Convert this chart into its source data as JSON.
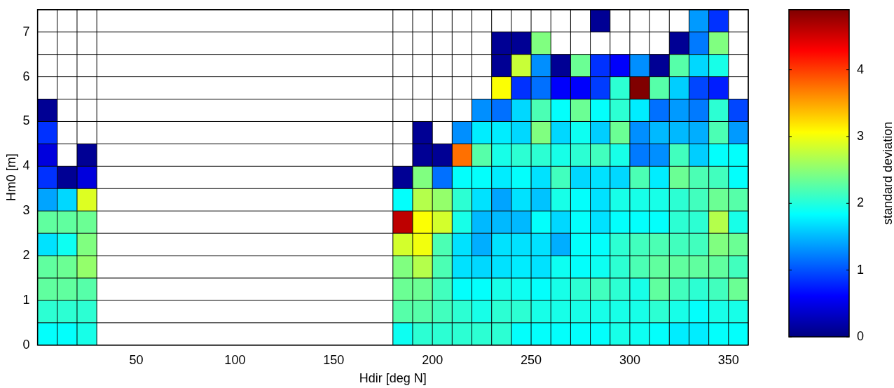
{
  "chart_data": {
    "type": "heatmap",
    "xlabel": "Hdir [deg N]",
    "ylabel": "Hm0 [m]",
    "clabel": "standard deviation",
    "grid": true,
    "xlim": [
      0,
      360
    ],
    "xticks": [
      50,
      100,
      150,
      200,
      250,
      300,
      350
    ],
    "ylim": [
      0,
      7.5
    ],
    "yticks": [
      0,
      1,
      2,
      3,
      4,
      5,
      6,
      7
    ],
    "clim": [
      0,
      4.9
    ],
    "cticks": [
      0,
      1,
      2,
      3,
      4
    ],
    "cells": [
      [
        null,
        null,
        null,
        null,
        null,
        null,
        null,
        null,
        null,
        null,
        null,
        null,
        null,
        null,
        null,
        null,
        null,
        null,
        null,
        null,
        null,
        null,
        null,
        null,
        null,
        null,
        null,
        null,
        0.1,
        null,
        null,
        null,
        null,
        1.35,
        0.85,
        null
      ],
      [
        null,
        null,
        null,
        null,
        null,
        null,
        null,
        null,
        null,
        null,
        null,
        null,
        null,
        null,
        null,
        null,
        null,
        null,
        null,
        null,
        null,
        null,
        null,
        0.1,
        0.1,
        2.45,
        null,
        null,
        null,
        null,
        null,
        null,
        0.1,
        1.2,
        2.45,
        null
      ],
      [
        null,
        null,
        null,
        null,
        null,
        null,
        null,
        null,
        null,
        null,
        null,
        null,
        null,
        null,
        null,
        null,
        null,
        null,
        null,
        null,
        null,
        null,
        null,
        0.1,
        2.8,
        1.3,
        0.1,
        2.35,
        0.85,
        0.6,
        1.3,
        0.1,
        2.25,
        1.65,
        1.95,
        null
      ],
      [
        null,
        null,
        null,
        null,
        null,
        null,
        null,
        null,
        null,
        null,
        null,
        null,
        null,
        null,
        null,
        null,
        null,
        null,
        null,
        null,
        null,
        null,
        null,
        3.05,
        0.85,
        1.15,
        0.6,
        0.6,
        0.9,
        2.05,
        4.9,
        2.25,
        1.6,
        0.95,
        0.75,
        null
      ],
      [
        0.1,
        null,
        null,
        null,
        null,
        null,
        null,
        null,
        null,
        null,
        null,
        null,
        null,
        null,
        null,
        null,
        null,
        null,
        null,
        null,
        null,
        null,
        1.3,
        1.15,
        1.65,
        2.2,
        1.85,
        2.35,
        1.85,
        2.05,
        1.75,
        1.15,
        1.35,
        1.2,
        2.05,
        0.95
      ],
      [
        0.85,
        null,
        null,
        null,
        null,
        null,
        null,
        null,
        null,
        null,
        null,
        null,
        null,
        null,
        null,
        null,
        null,
        null,
        null,
        0.1,
        null,
        1.3,
        1.75,
        1.75,
        1.65,
        2.45,
        1.65,
        1.9,
        1.6,
        2.35,
        1.3,
        1.5,
        1.5,
        1.45,
        2.2,
        1.35
      ],
      [
        0.45,
        null,
        0.1,
        null,
        null,
        null,
        null,
        null,
        null,
        null,
        null,
        null,
        null,
        null,
        null,
        null,
        null,
        null,
        null,
        0.1,
        0.1,
        3.75,
        2.25,
        1.95,
        2.05,
        2.05,
        1.95,
        2.05,
        2.15,
        1.95,
        1.2,
        1.3,
        2.15,
        1.6,
        1.85,
        1.85
      ],
      [
        0.85,
        0.1,
        0.45,
        null,
        null,
        null,
        null,
        null,
        null,
        null,
        null,
        null,
        null,
        null,
        null,
        null,
        null,
        null,
        0.1,
        2.45,
        1.15,
        1.85,
        1.85,
        1.75,
        1.85,
        1.7,
        2.15,
        1.65,
        1.7,
        1.65,
        2.2,
        1.75,
        2.35,
        2.2,
        2.15,
        1.85
      ],
      [
        1.4,
        1.65,
        2.9,
        null,
        null,
        null,
        null,
        null,
        null,
        null,
        null,
        null,
        null,
        null,
        null,
        null,
        null,
        null,
        1.85,
        2.7,
        2.55,
        2.05,
        1.7,
        1.4,
        1.7,
        1.55,
        1.95,
        1.85,
        1.7,
        1.95,
        1.95,
        1.95,
        2.05,
        2.15,
        2.35,
        2.25
      ],
      [
        2.3,
        2.3,
        2.35,
        null,
        null,
        null,
        null,
        null,
        null,
        null,
        null,
        null,
        null,
        null,
        null,
        null,
        null,
        null,
        4.6,
        3.05,
        2.85,
        1.95,
        1.5,
        1.5,
        1.5,
        1.85,
        1.65,
        1.85,
        1.7,
        1.85,
        1.85,
        1.85,
        2.05,
        2.05,
        2.7,
        1.95
      ],
      [
        1.7,
        1.9,
        2.45,
        null,
        null,
        null,
        null,
        null,
        null,
        null,
        null,
        null,
        null,
        null,
        null,
        null,
        null,
        null,
        2.85,
        3.0,
        2.2,
        1.7,
        1.45,
        1.7,
        1.7,
        1.7,
        1.45,
        1.85,
        1.85,
        2.05,
        2.15,
        2.2,
        2.15,
        2.15,
        2.45,
        2.35
      ],
      [
        2.3,
        2.35,
        2.55,
        null,
        null,
        null,
        null,
        null,
        null,
        null,
        null,
        null,
        null,
        null,
        null,
        null,
        null,
        null,
        2.45,
        2.7,
        2.2,
        1.7,
        1.65,
        1.7,
        1.75,
        1.7,
        1.9,
        1.85,
        1.9,
        2.05,
        2.2,
        2.3,
        2.3,
        2.3,
        2.3,
        2.15
      ],
      [
        2.3,
        2.3,
        2.25,
        null,
        null,
        null,
        null,
        null,
        null,
        null,
        null,
        null,
        null,
        null,
        null,
        null,
        null,
        null,
        2.35,
        2.35,
        2.15,
        1.85,
        1.85,
        1.95,
        1.9,
        1.85,
        1.95,
        2.05,
        2.15,
        2.05,
        1.95,
        2.3,
        2.15,
        2.05,
        2.15,
        2.35
      ],
      [
        2.05,
        2.05,
        2.05,
        null,
        null,
        null,
        null,
        null,
        null,
        null,
        null,
        null,
        null,
        null,
        null,
        null,
        null,
        null,
        2.25,
        2.25,
        2.15,
        2.05,
        1.95,
        2.05,
        2.05,
        1.95,
        1.95,
        1.95,
        1.95,
        1.95,
        1.95,
        2.05,
        1.95,
        1.85,
        1.95,
        1.95
      ],
      [
        1.85,
        1.85,
        1.95,
        null,
        null,
        null,
        null,
        null,
        null,
        null,
        null,
        null,
        null,
        null,
        null,
        null,
        null,
        null,
        1.9,
        2.05,
        2.05,
        2.05,
        2.05,
        2.05,
        1.85,
        1.85,
        1.85,
        1.85,
        1.85,
        1.95,
        1.9,
        1.85,
        1.75,
        1.75,
        1.85,
        1.85
      ]
    ]
  }
}
